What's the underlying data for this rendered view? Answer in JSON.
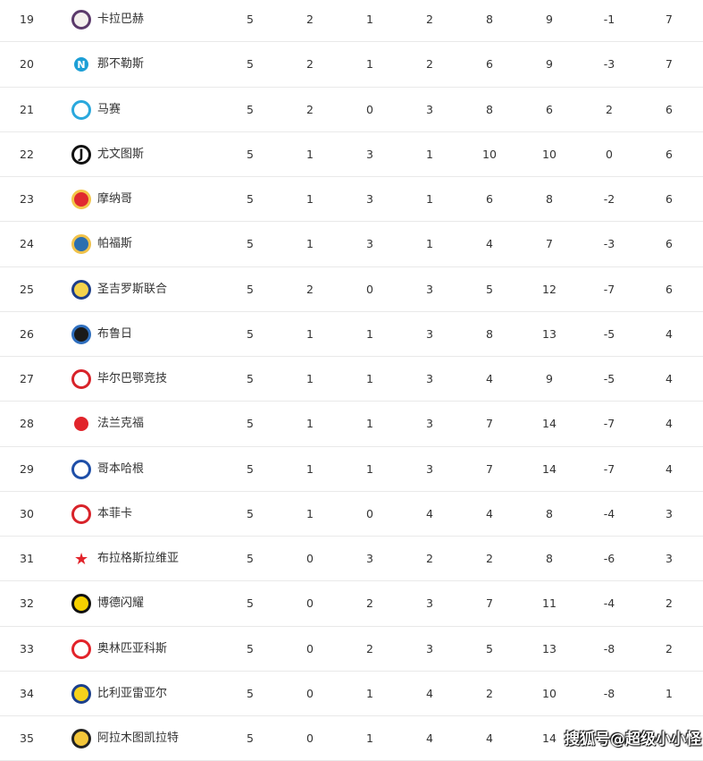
{
  "standings": [
    {
      "rank": "19",
      "team": "卡拉巴赫",
      "logo": "qarabag-crest",
      "colors": [
        "#f4f0ee",
        "#5b3a6b"
      ],
      "p": "5",
      "w": "2",
      "d": "1",
      "l": "2",
      "gf": "8",
      "ga": "9",
      "gd": "-1",
      "pts": "7"
    },
    {
      "rank": "20",
      "team": "那不勒斯",
      "logo": "napoli-crest",
      "colors": [
        "#1d9fd6",
        "#ffffff"
      ],
      "p": "5",
      "w": "2",
      "d": "1",
      "l": "2",
      "gf": "6",
      "ga": "9",
      "gd": "-3",
      "pts": "7"
    },
    {
      "rank": "21",
      "team": "马赛",
      "logo": "marseille-crest",
      "colors": [
        "#ffffff",
        "#2aa8dd"
      ],
      "p": "5",
      "w": "2",
      "d": "0",
      "l": "3",
      "gf": "8",
      "ga": "6",
      "gd": "2",
      "pts": "6"
    },
    {
      "rank": "22",
      "team": "尤文图斯",
      "logo": "juventus-crest",
      "colors": [
        "#ffffff",
        "#111111"
      ],
      "p": "5",
      "w": "1",
      "d": "3",
      "l": "1",
      "gf": "10",
      "ga": "10",
      "gd": "0",
      "pts": "6"
    },
    {
      "rank": "23",
      "team": "摩纳哥",
      "logo": "monaco-crest",
      "colors": [
        "#e0292f",
        "#f3c64a"
      ],
      "p": "5",
      "w": "1",
      "d": "3",
      "l": "1",
      "gf": "6",
      "ga": "8",
      "gd": "-2",
      "pts": "6"
    },
    {
      "rank": "24",
      "team": "帕福斯",
      "logo": "paphos-crest",
      "colors": [
        "#2b6fb0",
        "#f0c24a"
      ],
      "p": "5",
      "w": "1",
      "d": "3",
      "l": "1",
      "gf": "4",
      "ga": "7",
      "gd": "-3",
      "pts": "6"
    },
    {
      "rank": "25",
      "team": "圣吉罗斯联合",
      "logo": "union-sg-crest",
      "colors": [
        "#f5d34c",
        "#1d3e8a"
      ],
      "p": "5",
      "w": "2",
      "d": "0",
      "l": "3",
      "gf": "5",
      "ga": "12",
      "gd": "-7",
      "pts": "6"
    },
    {
      "rank": "26",
      "team": "布鲁日",
      "logo": "club-brugge-crest",
      "colors": [
        "#1a1a1a",
        "#2f6fbf"
      ],
      "p": "5",
      "w": "1",
      "d": "1",
      "l": "3",
      "gf": "8",
      "ga": "13",
      "gd": "-5",
      "pts": "4"
    },
    {
      "rank": "27",
      "team": "毕尔巴鄂竞技",
      "logo": "athletic-bilbao-crest",
      "colors": [
        "#ffffff",
        "#d8232a"
      ],
      "p": "5",
      "w": "1",
      "d": "1",
      "l": "3",
      "gf": "4",
      "ga": "9",
      "gd": "-5",
      "pts": "4"
    },
    {
      "rank": "28",
      "team": "法兰克福",
      "logo": "frankfurt-crest",
      "colors": [
        "#e1242b",
        "#ffffff"
      ],
      "p": "5",
      "w": "1",
      "d": "1",
      "l": "3",
      "gf": "7",
      "ga": "14",
      "gd": "-7",
      "pts": "4"
    },
    {
      "rank": "29",
      "team": "哥本哈根",
      "logo": "copenhagen-crest",
      "colors": [
        "#ffffff",
        "#1f4fa8"
      ],
      "p": "5",
      "w": "1",
      "d": "1",
      "l": "3",
      "gf": "7",
      "ga": "14",
      "gd": "-7",
      "pts": "4"
    },
    {
      "rank": "30",
      "team": "本菲卡",
      "logo": "benfica-crest",
      "colors": [
        "#ffffff",
        "#d8232a"
      ],
      "p": "5",
      "w": "1",
      "d": "0",
      "l": "4",
      "gf": "4",
      "ga": "8",
      "gd": "-4",
      "pts": "3"
    },
    {
      "rank": "31",
      "team": "布拉格斯拉维亚",
      "logo": "slavia-star",
      "colors": [
        "#ffffff",
        "#e2232a"
      ],
      "p": "5",
      "w": "0",
      "d": "3",
      "l": "2",
      "gf": "2",
      "ga": "8",
      "gd": "-6",
      "pts": "3"
    },
    {
      "rank": "32",
      "team": "博德闪耀",
      "logo": "bodo-glimt-crest",
      "colors": [
        "#f5d000",
        "#111111"
      ],
      "p": "5",
      "w": "0",
      "d": "2",
      "l": "3",
      "gf": "7",
      "ga": "11",
      "gd": "-4",
      "pts": "2"
    },
    {
      "rank": "33",
      "team": "奥林匹亚科斯",
      "logo": "olympiacos-crest",
      "colors": [
        "#ffffff",
        "#e2232a"
      ],
      "p": "5",
      "w": "0",
      "d": "2",
      "l": "3",
      "gf": "5",
      "ga": "13",
      "gd": "-8",
      "pts": "2"
    },
    {
      "rank": "34",
      "team": "比利亚雷亚尔",
      "logo": "villarreal-crest",
      "colors": [
        "#f6d21c",
        "#1b3f8b"
      ],
      "p": "5",
      "w": "0",
      "d": "1",
      "l": "4",
      "gf": "2",
      "ga": "10",
      "gd": "-8",
      "pts": "1"
    },
    {
      "rank": "35",
      "team": "阿拉木图凯拉特",
      "logo": "kairat-crest",
      "colors": [
        "#f3c63a",
        "#222222"
      ],
      "p": "5",
      "w": "0",
      "d": "1",
      "l": "4",
      "gf": "4",
      "ga": "14"
    }
  ],
  "watermark": "搜狐号@超级小小怪"
}
